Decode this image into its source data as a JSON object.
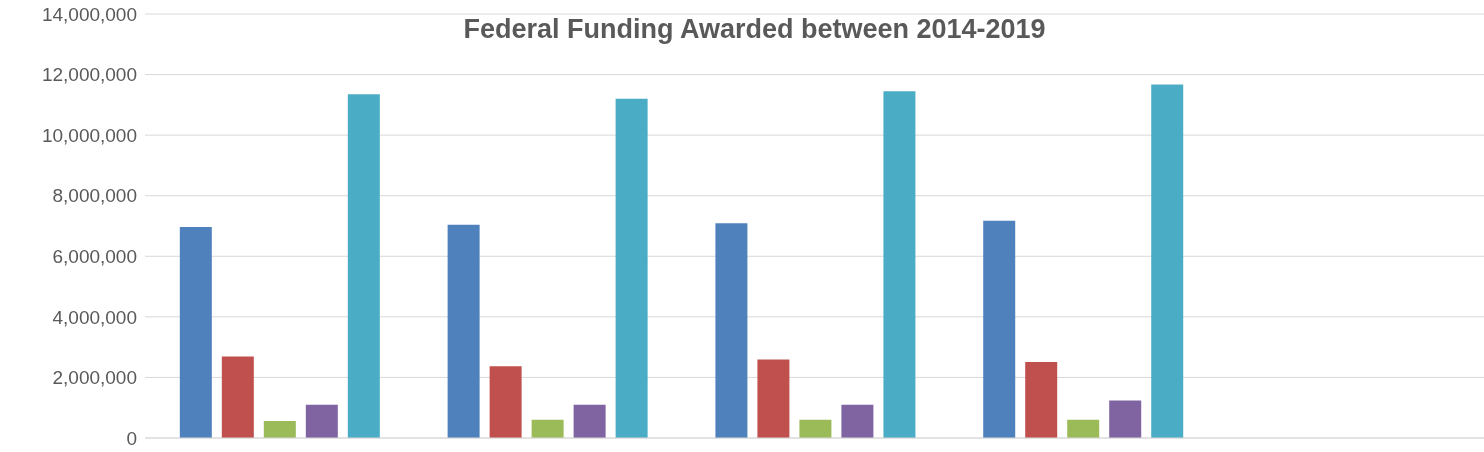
{
  "chart_data": {
    "type": "bar",
    "title": "Federal Funding Awarded between 2014-2019",
    "categories": [
      null,
      null,
      null,
      null,
      null
    ],
    "series": [
      {
        "color": "#4f81bd",
        "values": [
          6970000,
          7040000,
          7090000,
          7170000,
          null
        ]
      },
      {
        "color": "#c0504d",
        "values": [
          2690000,
          2370000,
          2590000,
          2510000,
          null
        ]
      },
      {
        "color": "#9bbb59",
        "values": [
          560000,
          600000,
          600000,
          600000,
          null
        ]
      },
      {
        "color": "#8064a2",
        "values": [
          1100000,
          1100000,
          1100000,
          1240000,
          null
        ]
      },
      {
        "color": "#4bacc6",
        "values": [
          11350000,
          11200000,
          11450000,
          11670000,
          null
        ]
      }
    ],
    "ylim": [
      0,
      14000000
    ],
    "yticks": [
      0,
      {
        "value": 2000000,
        "label": "2,000,000"
      },
      {
        "value": 4000000,
        "label": "4,000,000"
      },
      {
        "value": 6000000,
        "label": "6,000,000"
      },
      {
        "value": 8000000,
        "label": "8,000,000"
      },
      {
        "value": 10000000,
        "label": "10,000,000"
      },
      {
        "value": 12000000,
        "label": "12,000,000"
      },
      {
        "value": 14000000,
        "label": "14,000,000"
      }
    ],
    "grid": "y",
    "legend": false,
    "tick_labels": "y"
  }
}
